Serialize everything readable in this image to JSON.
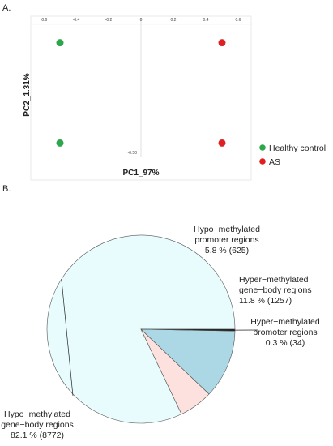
{
  "panels": {
    "a_label": "A.",
    "b_label": "B."
  },
  "chart_data": [
    {
      "type": "scatter",
      "xlabel": "PC1_97%",
      "ylabel": "PC2_1.31%",
      "xlim": [
        -0.63,
        0.63
      ],
      "ylim": [
        -0.55,
        0.55
      ],
      "x_ticks": [
        "-0.6",
        "-0.4",
        "-0.2",
        "0",
        "0.2",
        "0.4",
        "0.6"
      ],
      "x_tick_values": [
        -0.6,
        -0.4,
        -0.2,
        0,
        0.2,
        0.4,
        0.6
      ],
      "y_tick_label": "-0.50",
      "y_tick_value": -0.5,
      "series": [
        {
          "name": "Healthy control",
          "color": "#2aa84a",
          "points": [
            {
              "x": -0.5,
              "y": 0.4
            },
            {
              "x": -0.5,
              "y": -0.42
            }
          ]
        },
        {
          "name": "AS",
          "color": "#e02020",
          "points": [
            {
              "x": 0.5,
              "y": 0.4
            },
            {
              "x": 0.5,
              "y": -0.42
            }
          ]
        }
      ],
      "legend_position": "right",
      "grid": false
    },
    {
      "type": "pie",
      "slices": [
        {
          "label_lines": [
            "Hypo−methylated",
            "gene−body regions",
            "82.1 %  (8772)"
          ],
          "value": 82.1,
          "count": 8772,
          "color": "#e8fcfe"
        },
        {
          "label_lines": [
            "Hypo−methylated",
            "promoter regions",
            "5.8 %   (625)"
          ],
          "value": 5.8,
          "count": 625,
          "color": "#fde1df"
        },
        {
          "label_lines": [
            "Hyper−methylated",
            "gene−body regions",
            "11.8 %   (1257)"
          ],
          "value": 11.8,
          "count": 1257,
          "color": "#acd7e4"
        },
        {
          "label_lines": [
            "Hyper−methylated",
            "promoter regions",
            "0.3 %  (34)"
          ],
          "value": 0.3,
          "count": 34,
          "color": "#1a1a1a"
        }
      ]
    }
  ]
}
